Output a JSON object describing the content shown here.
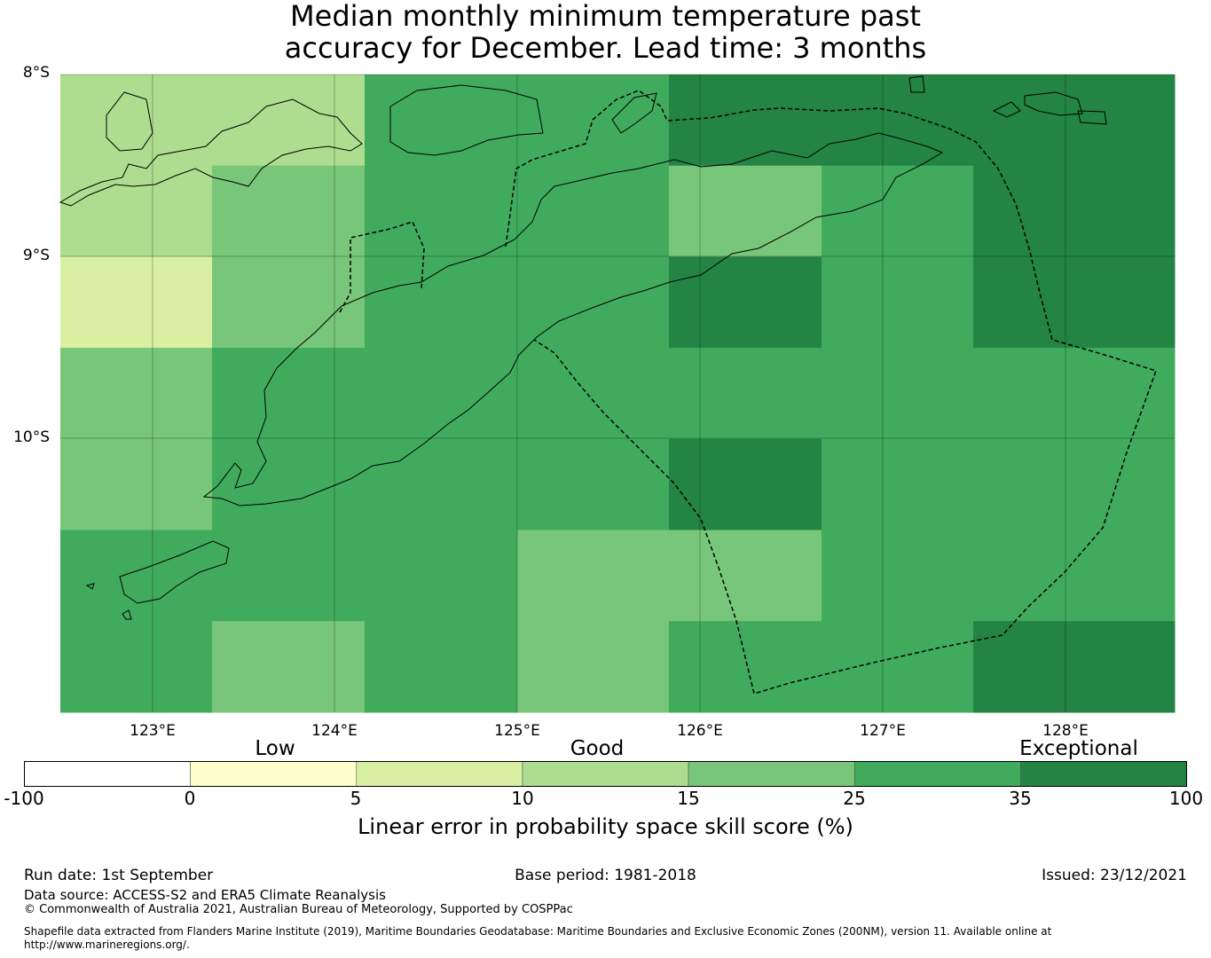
{
  "title": {
    "line1": "Median monthly minimum temperature past",
    "line2": "accuracy for December. Lead time: 3 months"
  },
  "map": {
    "lat_labels": [
      "8°S",
      "9°S",
      "10°S"
    ],
    "lon_labels": [
      "123°E",
      "124°E",
      "125°E",
      "126°E",
      "127°E",
      "128°E"
    ],
    "grid_lines": true,
    "coastline_color": "#000000",
    "boundary_style": "dashed",
    "skill_grid": {
      "value_meaning": "colour-bar bin index (0 = below 0, 1 = 0-5, 2 = 5-10, 3 = 10-15, 4 = 15-25, 5 = 25-35, 6 = 35-100)",
      "rows": [
        [
          3,
          3,
          5,
          5,
          6,
          6,
          6
        ],
        [
          3,
          4,
          5,
          5,
          4,
          5,
          6
        ],
        [
          2,
          4,
          5,
          5,
          6,
          5,
          6
        ],
        [
          4,
          5,
          5,
          5,
          5,
          5,
          5
        ],
        [
          4,
          5,
          5,
          5,
          6,
          5,
          5
        ],
        [
          5,
          5,
          5,
          4,
          4,
          5,
          5
        ],
        [
          5,
          4,
          5,
          4,
          5,
          5,
          6
        ]
      ]
    }
  },
  "categories": [
    "Low",
    "Good",
    "Exceptional"
  ],
  "colorbar": {
    "ticks": [
      "-100",
      "0",
      "5",
      "10",
      "15",
      "25",
      "35",
      "100"
    ],
    "colors": [
      "#ffffff",
      "#ffffcc",
      "#d9f0a3",
      "#addd8e",
      "#78c679",
      "#41ab5d",
      "#238443"
    ],
    "label": "Linear error in probability space skill score (%)"
  },
  "footer": {
    "run_date": "Run date: 1st September",
    "base_period": "Base period: 1981-2018",
    "issued": "Issued: 23/12/2021",
    "data_source": "Data source: ACCESS-S2 and ERA5 Climate Reanalysis",
    "copyright": "© Commonwealth of Australia 2021, Australian Bureau of Meteorology, Supported by COSPPac",
    "shapefile": "Shapefile data extracted from Flanders Marine Institute (2019), Maritime Boundaries Geodatabase: Maritime Boundaries and Exclusive Economic Zones (200NM), version 11. Available online at http://www.marineregions.org/."
  }
}
